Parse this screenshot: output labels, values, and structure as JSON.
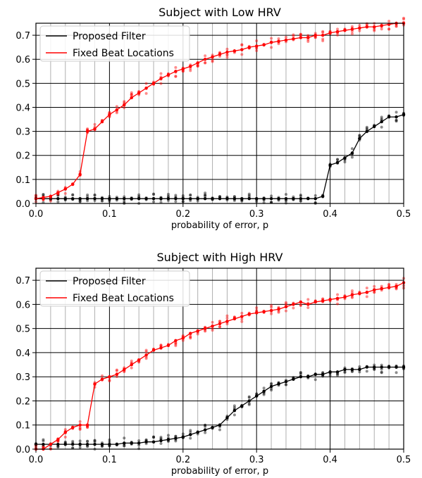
{
  "chart_data": [
    {
      "type": "line",
      "title": "Subject with Low HRV",
      "xlabel": "probability of error, p",
      "ylabel": "",
      "xlim": [
        0.0,
        0.5
      ],
      "ylim": [
        0.0,
        0.75
      ],
      "xticks": [
        "0.0",
        "0.1",
        "0.2",
        "0.3",
        "0.4",
        "0.5"
      ],
      "yticks": [
        "0.0",
        "0.1",
        "0.2",
        "0.3",
        "0.4",
        "0.5",
        "0.6",
        "0.7"
      ],
      "grid": true,
      "legend_position": "top-left",
      "series": [
        {
          "name": "Proposed Filter",
          "color": "#000000",
          "x": [
            0.0,
            0.01,
            0.02,
            0.03,
            0.04,
            0.05,
            0.06,
            0.07,
            0.08,
            0.09,
            0.1,
            0.11,
            0.12,
            0.13,
            0.14,
            0.15,
            0.16,
            0.17,
            0.18,
            0.19,
            0.2,
            0.21,
            0.22,
            0.23,
            0.24,
            0.25,
            0.26,
            0.27,
            0.28,
            0.29,
            0.3,
            0.31,
            0.32,
            0.33,
            0.34,
            0.35,
            0.36,
            0.37,
            0.38,
            0.39,
            0.4,
            0.41,
            0.42,
            0.43,
            0.44,
            0.45,
            0.46,
            0.47,
            0.48,
            0.49,
            0.5
          ],
          "values": [
            0.02,
            0.02,
            0.02,
            0.02,
            0.02,
            0.02,
            0.02,
            0.02,
            0.02,
            0.02,
            0.02,
            0.02,
            0.02,
            0.02,
            0.02,
            0.02,
            0.02,
            0.02,
            0.02,
            0.02,
            0.02,
            0.02,
            0.02,
            0.02,
            0.02,
            0.02,
            0.02,
            0.02,
            0.02,
            0.02,
            0.02,
            0.02,
            0.02,
            0.02,
            0.02,
            0.02,
            0.02,
            0.02,
            0.02,
            0.03,
            0.16,
            0.17,
            0.19,
            0.21,
            0.27,
            0.3,
            0.32,
            0.34,
            0.36,
            0.36,
            0.37
          ]
        },
        {
          "name": "Fixed Beat Locations",
          "color": "#ff0000",
          "x": [
            0.0,
            0.01,
            0.02,
            0.03,
            0.04,
            0.05,
            0.06,
            0.07,
            0.08,
            0.09,
            0.1,
            0.11,
            0.12,
            0.13,
            0.14,
            0.15,
            0.16,
            0.17,
            0.18,
            0.19,
            0.2,
            0.21,
            0.22,
            0.23,
            0.24,
            0.25,
            0.26,
            0.27,
            0.28,
            0.29,
            0.3,
            0.31,
            0.32,
            0.33,
            0.34,
            0.35,
            0.36,
            0.37,
            0.38,
            0.39,
            0.4,
            0.41,
            0.42,
            0.43,
            0.44,
            0.45,
            0.46,
            0.47,
            0.48,
            0.49,
            0.5
          ],
          "values": [
            0.02,
            0.025,
            0.03,
            0.045,
            0.06,
            0.08,
            0.12,
            0.3,
            0.31,
            0.34,
            0.37,
            0.39,
            0.41,
            0.44,
            0.46,
            0.48,
            0.5,
            0.52,
            0.535,
            0.55,
            0.56,
            0.57,
            0.585,
            0.6,
            0.61,
            0.62,
            0.63,
            0.635,
            0.64,
            0.65,
            0.655,
            0.66,
            0.67,
            0.675,
            0.68,
            0.685,
            0.69,
            0.69,
            0.7,
            0.7,
            0.71,
            0.715,
            0.72,
            0.725,
            0.73,
            0.735,
            0.735,
            0.74,
            0.745,
            0.75,
            0.75
          ]
        }
      ]
    },
    {
      "type": "line",
      "title": "Subject with High HRV",
      "xlabel": "probability of error, p",
      "ylabel": "",
      "xlim": [
        0.0,
        0.5
      ],
      "ylim": [
        0.0,
        0.75
      ],
      "xticks": [
        "0.0",
        "0.1",
        "0.2",
        "0.3",
        "0.4",
        "0.5"
      ],
      "yticks": [
        "0.0",
        "0.1",
        "0.2",
        "0.3",
        "0.4",
        "0.5",
        "0.6",
        "0.7"
      ],
      "grid": true,
      "legend_position": "top-left",
      "series": [
        {
          "name": "Proposed Filter",
          "color": "#000000",
          "x": [
            0.0,
            0.01,
            0.02,
            0.03,
            0.04,
            0.05,
            0.06,
            0.07,
            0.08,
            0.09,
            0.1,
            0.11,
            0.12,
            0.13,
            0.14,
            0.15,
            0.16,
            0.17,
            0.18,
            0.19,
            0.2,
            0.21,
            0.22,
            0.23,
            0.24,
            0.25,
            0.26,
            0.27,
            0.28,
            0.29,
            0.3,
            0.31,
            0.32,
            0.33,
            0.34,
            0.35,
            0.36,
            0.37,
            0.38,
            0.39,
            0.4,
            0.41,
            0.42,
            0.43,
            0.44,
            0.45,
            0.46,
            0.47,
            0.48,
            0.49,
            0.5
          ],
          "values": [
            0.02,
            0.02,
            0.02,
            0.02,
            0.02,
            0.02,
            0.02,
            0.02,
            0.02,
            0.02,
            0.02,
            0.02,
            0.025,
            0.025,
            0.025,
            0.03,
            0.03,
            0.035,
            0.04,
            0.045,
            0.05,
            0.06,
            0.07,
            0.08,
            0.09,
            0.1,
            0.13,
            0.16,
            0.18,
            0.2,
            0.22,
            0.24,
            0.26,
            0.27,
            0.28,
            0.29,
            0.3,
            0.3,
            0.31,
            0.31,
            0.32,
            0.32,
            0.33,
            0.33,
            0.33,
            0.34,
            0.34,
            0.34,
            0.34,
            0.34,
            0.34
          ]
        },
        {
          "name": "Fixed Beat Locations",
          "color": "#ff0000",
          "x": [
            0.0,
            0.01,
            0.02,
            0.03,
            0.04,
            0.05,
            0.06,
            0.07,
            0.08,
            0.09,
            0.1,
            0.11,
            0.12,
            0.13,
            0.14,
            0.15,
            0.16,
            0.17,
            0.18,
            0.19,
            0.2,
            0.21,
            0.22,
            0.23,
            0.24,
            0.25,
            0.26,
            0.27,
            0.28,
            0.29,
            0.3,
            0.31,
            0.32,
            0.33,
            0.34,
            0.35,
            0.36,
            0.37,
            0.38,
            0.39,
            0.4,
            0.41,
            0.42,
            0.43,
            0.44,
            0.45,
            0.46,
            0.47,
            0.48,
            0.49,
            0.5
          ],
          "values": [
            0.0,
            0.0,
            0.02,
            0.04,
            0.07,
            0.09,
            0.1,
            0.1,
            0.27,
            0.29,
            0.3,
            0.31,
            0.33,
            0.35,
            0.37,
            0.39,
            0.41,
            0.42,
            0.43,
            0.45,
            0.46,
            0.48,
            0.49,
            0.5,
            0.51,
            0.52,
            0.53,
            0.54,
            0.55,
            0.56,
            0.565,
            0.57,
            0.575,
            0.58,
            0.59,
            0.6,
            0.61,
            0.6,
            0.61,
            0.615,
            0.62,
            0.625,
            0.63,
            0.64,
            0.645,
            0.65,
            0.66,
            0.665,
            0.67,
            0.675,
            0.69
          ]
        }
      ]
    }
  ]
}
